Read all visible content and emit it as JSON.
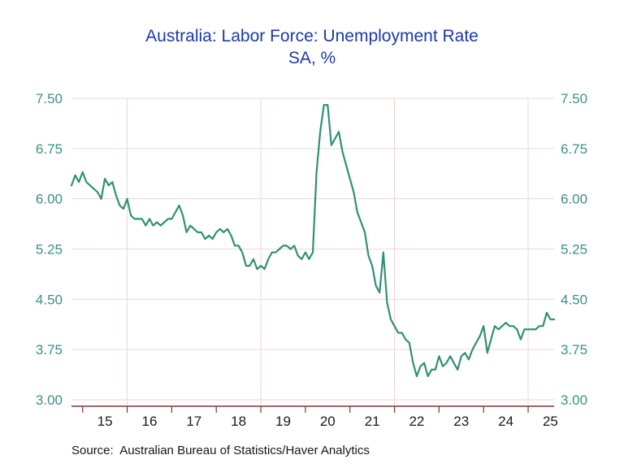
{
  "title": {
    "line1": "Australia: Labor Force: Unemployment Rate",
    "line2": "SA, %"
  },
  "source_note": "Source:  Australian Bureau of Statistics/Haver Analytics",
  "colors": {
    "title_text": "#1c3aa9",
    "line": "#309173",
    "gridline": "#eed6d6",
    "axis": "#7f3333",
    "y_tick_labels": "#3a9184",
    "x_tick_labels": "#1a1a1a",
    "background": "#ffffff"
  },
  "chart_data": {
    "type": "line",
    "title": "Australia: Labor Force: Unemployment Rate",
    "subtitle": "SA, %",
    "unit": "percent",
    "frequency": "monthly",
    "start_month": "2014-10",
    "end_month": "2025-08",
    "ylim": [
      3.0,
      7.5
    ],
    "y_ticks": [
      "7.50",
      "6.75",
      "6.00",
      "5.25",
      "4.50",
      "3.75",
      "3.00"
    ],
    "y_tick_values": [
      7.5,
      6.75,
      6.0,
      5.25,
      4.5,
      3.75,
      3.0
    ],
    "x_year_labels": [
      "15",
      "16",
      "17",
      "18",
      "19",
      "20",
      "21",
      "22",
      "23",
      "24",
      "25"
    ],
    "x_first_label_year": 2015,
    "vertical_gridline_years": [
      2016,
      2019,
      2022,
      2025
    ],
    "grid": true,
    "legend": "none",
    "series": [
      {
        "name": "Australia unemployment rate, SA, %",
        "values": [
          6.2,
          6.35,
          6.25,
          6.4,
          6.25,
          6.2,
          6.15,
          6.1,
          6.0,
          6.3,
          6.2,
          6.25,
          6.05,
          5.9,
          5.85,
          6.0,
          5.75,
          5.7,
          5.7,
          5.7,
          5.6,
          5.7,
          5.6,
          5.65,
          5.6,
          5.65,
          5.7,
          5.7,
          5.8,
          5.9,
          5.75,
          5.5,
          5.6,
          5.55,
          5.5,
          5.5,
          5.4,
          5.45,
          5.4,
          5.5,
          5.55,
          5.5,
          5.55,
          5.45,
          5.3,
          5.3,
          5.2,
          5.0,
          5.0,
          5.1,
          4.95,
          5.0,
          4.95,
          5.1,
          5.2,
          5.2,
          5.25,
          5.3,
          5.3,
          5.25,
          5.3,
          5.15,
          5.1,
          5.2,
          5.1,
          5.2,
          6.4,
          7.0,
          7.4,
          7.4,
          6.8,
          6.9,
          7.0,
          6.7,
          6.5,
          6.3,
          6.1,
          5.8,
          5.65,
          5.5,
          5.15,
          5.0,
          4.7,
          4.6,
          5.2,
          4.45,
          4.2,
          4.1,
          4.0,
          4.0,
          3.9,
          3.85,
          3.55,
          3.35,
          3.5,
          3.55,
          3.35,
          3.45,
          3.45,
          3.65,
          3.5,
          3.55,
          3.65,
          3.55,
          3.45,
          3.65,
          3.7,
          3.6,
          3.75,
          3.85,
          3.95,
          4.1,
          3.7,
          3.9,
          4.1,
          4.05,
          4.1,
          4.15,
          4.1,
          4.1,
          4.05,
          3.9,
          4.05,
          4.05,
          4.05,
          4.05,
          4.1,
          4.1,
          4.3,
          4.2,
          4.2
        ]
      }
    ]
  }
}
